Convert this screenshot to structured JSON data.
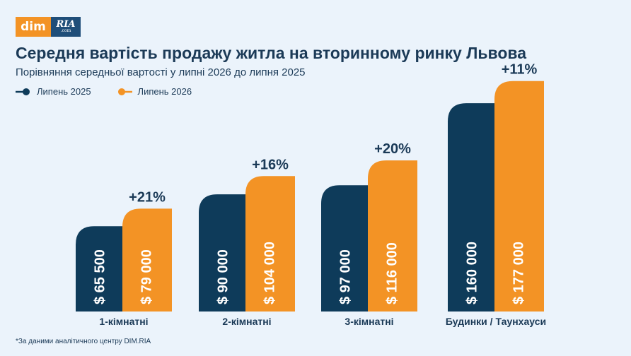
{
  "logo": {
    "left_text": "dim",
    "right_text": "RIA",
    "right_sub": ".com"
  },
  "colors": {
    "series_2025": "#0e3b5a",
    "series_2026": "#f39325",
    "text": "#1b3a57",
    "background": "#ebf3fb"
  },
  "footnote": "*За даними аналітичного центру DIM.RIA",
  "chart_data": {
    "type": "bar",
    "title": "Середня вартість продажу житла на вторинному ринку Львова",
    "subtitle": "Порівняння середньої вартості у липні 2026 до липня 2025",
    "categories": [
      "1-кімнатні",
      "2-кімнатні",
      "3-кімнатні",
      "Будинки / Таунхауси"
    ],
    "series": [
      {
        "name": "Липень 2025",
        "values": [
          65500,
          90000,
          97000,
          160000
        ],
        "labels": [
          "$ 65 500",
          "$ 90 000",
          "$ 97 000",
          "$ 160 000"
        ]
      },
      {
        "name": "Липень 2026",
        "values": [
          79000,
          104000,
          116000,
          177000
        ],
        "labels": [
          "$ 79 000",
          "$ 104 000",
          "$ 116 000",
          "$ 177 000"
        ]
      }
    ],
    "changes": [
      "+21%",
      "+16%",
      "+20%",
      "+11%"
    ],
    "ylim": [
      0,
      185000
    ],
    "legend_position": "top-left",
    "grid": false
  }
}
